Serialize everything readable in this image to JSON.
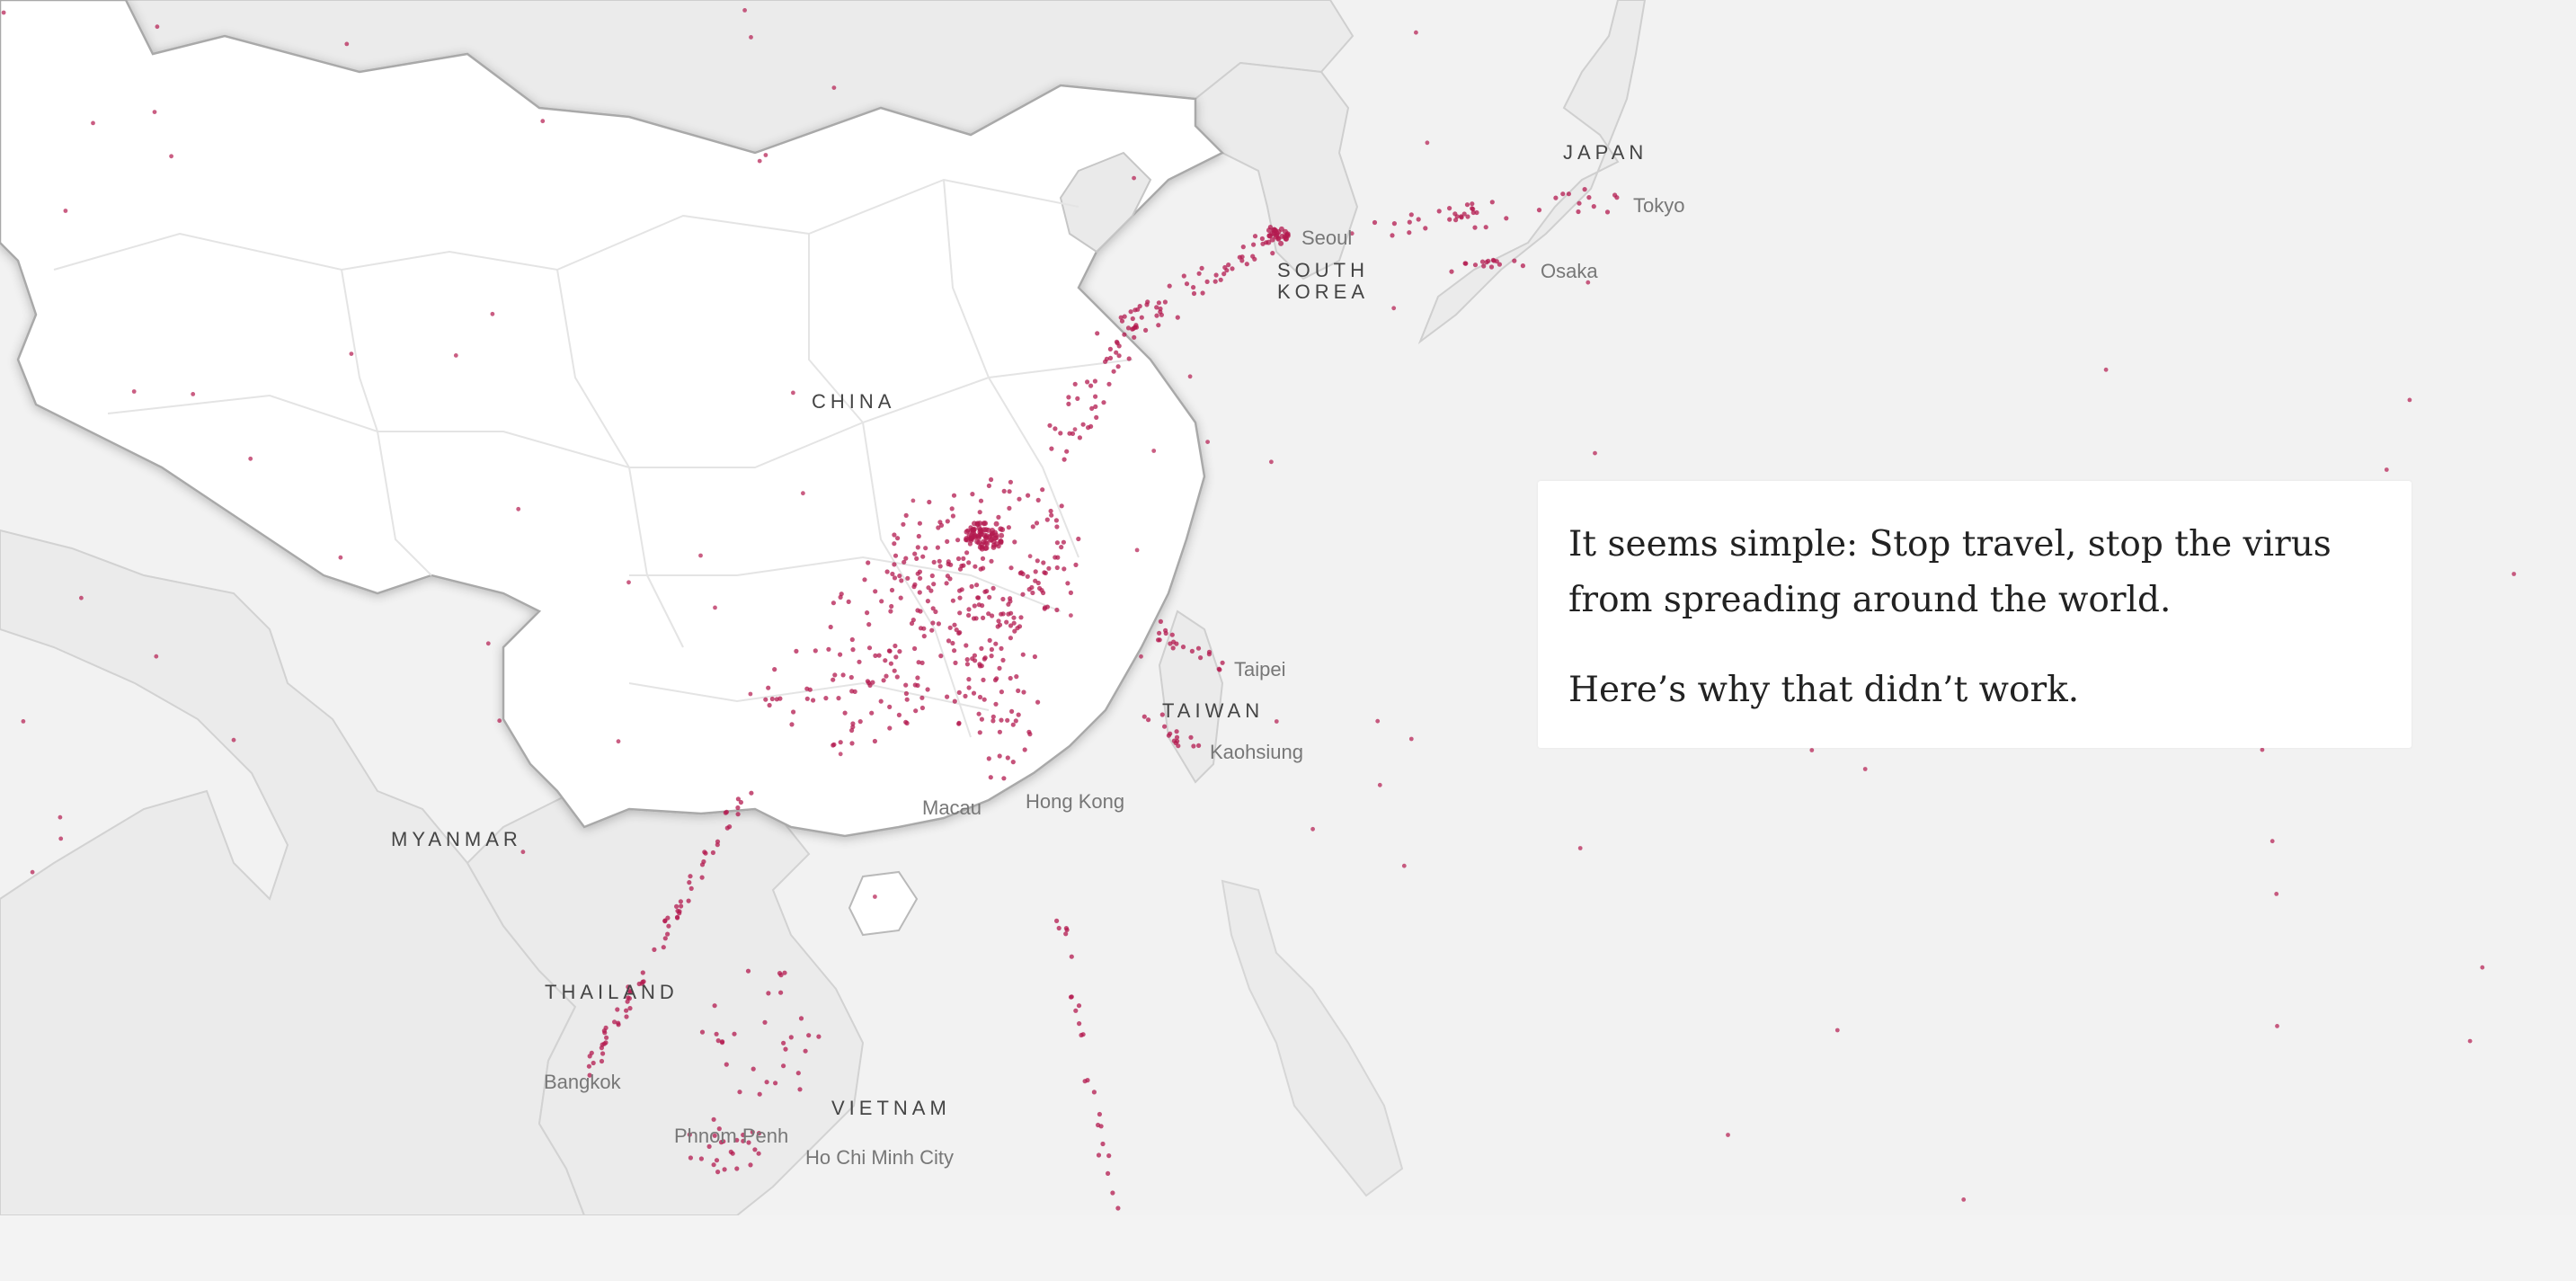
{
  "map": {
    "background_color": "#f2f2f2",
    "land_color": "#ffffff",
    "neighbor_land_color": "#ebebeb",
    "dot_color": "#b3194f",
    "country_labels": {
      "china": "CHINA",
      "japan": "JAPAN",
      "south_korea_line1": "SOUTH",
      "south_korea_line2": "KOREA",
      "taiwan": "TAIWAN",
      "myanmar": "MYANMAR",
      "thailand": "THAILAND",
      "vietnam": "VIETNAM"
    },
    "city_labels": {
      "seoul": "Seoul",
      "tokyo": "Tokyo",
      "osaka": "Osaka",
      "taipei": "Taipei",
      "kaohsiung": "Kaohsiung",
      "macau": "Macau",
      "hong_kong": "Hong Kong",
      "bangkok": "Bangkok",
      "phnom_penh": "Phnom Penh",
      "ho_chi_minh_city": "Ho Chi Minh City"
    }
  },
  "caption": {
    "paragraph_1": "It seems simple: Stop travel, stop the virus from spreading around the world.",
    "paragraph_2": "Here’s why that didn’t work."
  }
}
